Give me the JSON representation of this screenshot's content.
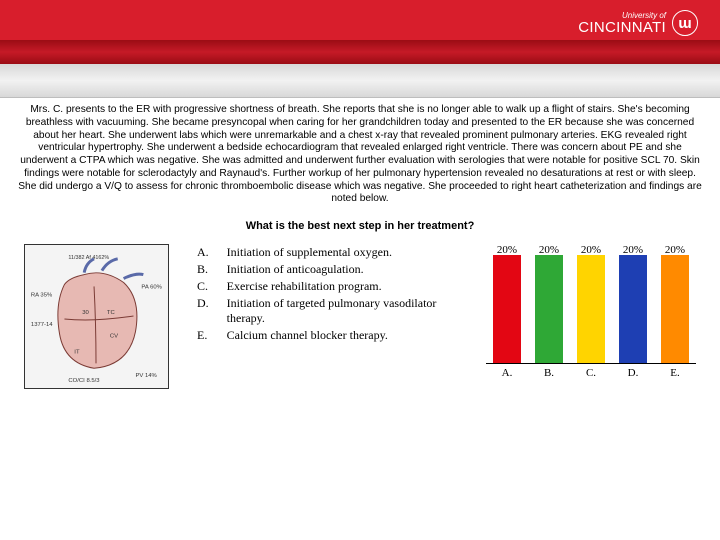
{
  "header": {
    "university_line1": "University of",
    "university_line2": "CINCINNATI",
    "logo_letter": "ɯ"
  },
  "case_text": "Mrs. C. presents to the ER with progressive shortness of breath. She reports that she is no longer able to walk up a flight of stairs. She's becoming breathless with vacuuming. She became presyncopal when caring for her grandchildren today and presented to the ER because she was concerned about her heart. She underwent labs which were unremarkable and a chest x-ray that revealed prominent pulmonary arteries. EKG revealed right ventricular hypertrophy. She underwent a bedside echocardiogram that revealed enlarged right ventricle. There was concern about PE and she underwent a CTPA which was negative. She was admitted and underwent further evaluation with serologies that were notable for positive SCL 70. Skin findings were notable for sclerodactyly and Raynaud's. Further workup of her pulmonary hypertension revealed no desaturations at rest or with sleep. She did undergo a V/Q to assess for chronic thromboembolic disease which was negative. She proceeded to right heart catheterization and findings are noted below.",
  "question": "What is the best next step in her treatment?",
  "options": [
    {
      "label": "A.",
      "text": "Initiation of supplemental oxygen."
    },
    {
      "label": "B.",
      "text": "Initiation of anticoagulation."
    },
    {
      "label": "C.",
      "text": "Exercise rehabilitation program."
    },
    {
      "label": "D.",
      "text": "Initiation of targeted pulmonary vasodilator therapy."
    },
    {
      "label": "E.",
      "text": "Calcium channel blocker therapy."
    }
  ],
  "chart": {
    "type": "bar",
    "percent_labels": [
      "20%",
      "20%",
      "20%",
      "20%",
      "20%"
    ],
    "categories": [
      "A.",
      "B.",
      "C.",
      "D.",
      "E."
    ],
    "values": [
      20,
      20,
      20,
      20,
      20
    ],
    "bar_colors": [
      "#e30613",
      "#2fa836",
      "#ffd400",
      "#1e3fb3",
      "#ff8a00"
    ],
    "max": 20,
    "font": "Times New Roman",
    "font_size": 11,
    "background": "#ffffff"
  },
  "heart_diagram": {
    "annotations": [
      "RA 35%",
      "11/382 Af 4162%",
      "PA 60%",
      "1377-14",
      "30",
      "TC",
      "CV",
      "IT",
      "CO/CI 8.5/3",
      "PV 14%"
    ],
    "border_color": "#333333",
    "bg": "#f4f4f4"
  },
  "colors": {
    "brand_red": "#d81e2c",
    "band_dark": "#9a0c14",
    "grey_band": "#d8d8d8"
  }
}
